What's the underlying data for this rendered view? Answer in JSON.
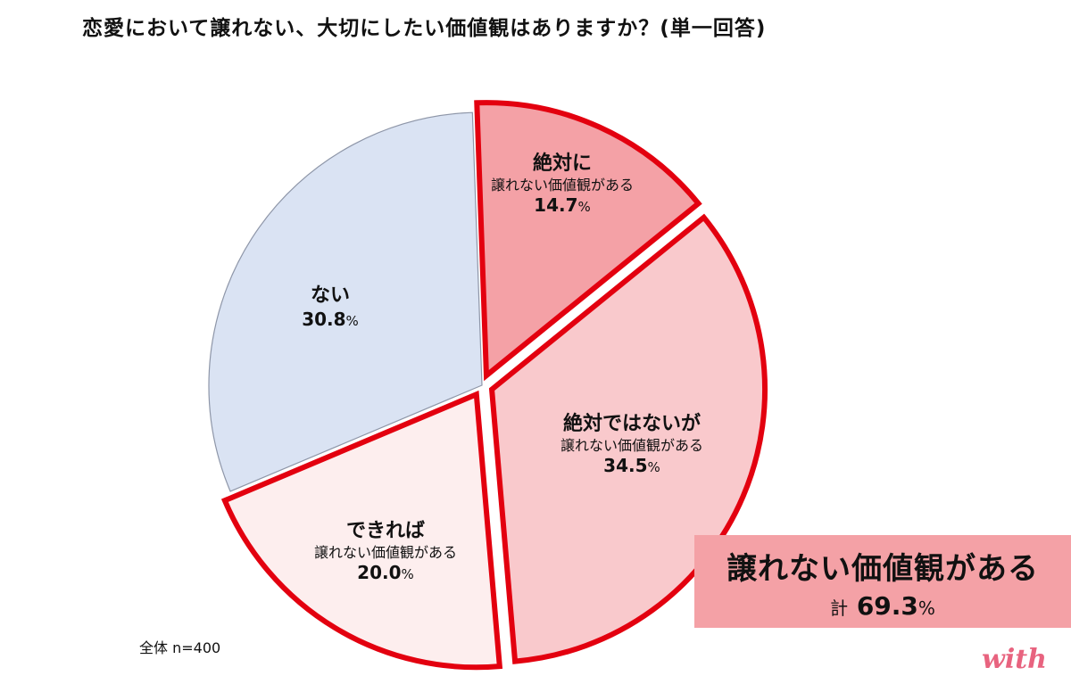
{
  "title": "恋愛において譲れない、大切にしたい価値観はありますか？(単一回答)",
  "chart_data": {
    "type": "pie",
    "title": "恋愛において譲れない、大切にしたい価値観はありますか？(単一回答)",
    "start_angle_deg": -2,
    "slices": [
      {
        "line1": "絶対に",
        "line2": "譲れない価値観がある",
        "value": 14.7,
        "pct_label": "14.7",
        "color": "#f4a1a6",
        "exploded": true
      },
      {
        "line1": "絶対ではないが",
        "line2": "譲れない価値観がある",
        "value": 34.5,
        "pct_label": "34.5",
        "color": "#f9c9cc",
        "exploded": true
      },
      {
        "line1": "できれば",
        "line2": "譲れない価値観がある",
        "value": 20.0,
        "pct_label": "20.0",
        "color": "#fdeeee",
        "exploded": true
      },
      {
        "line1": "ない",
        "line2": "",
        "value": 30.8,
        "pct_label": "30.8",
        "color": "#dae3f3",
        "exploded": false
      }
    ],
    "percent_sign": "%",
    "highlight_stroke": "#e3000f",
    "plain_stroke": "#8e96a8"
  },
  "summary": {
    "line1": "譲れない価値観がある",
    "prefix": "計",
    "value": "69.3",
    "sign": "%"
  },
  "sample": "全体 n=400",
  "logo": "with"
}
